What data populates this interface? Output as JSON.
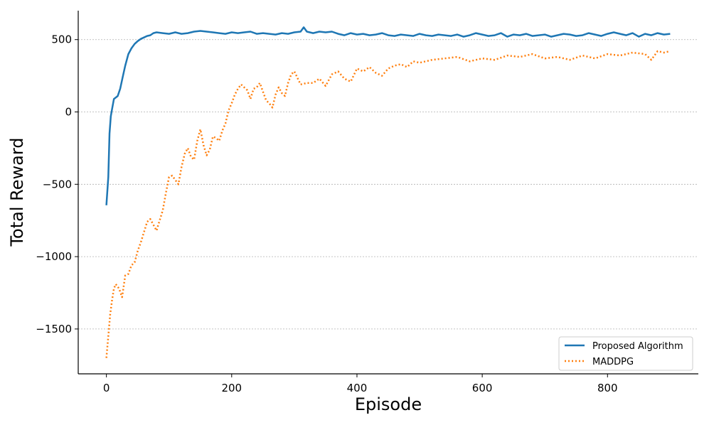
{
  "chart_data": {
    "type": "line",
    "title": "",
    "xlabel": "Episode",
    "ylabel": "Total Reward",
    "xlim": [
      -45,
      945
    ],
    "ylim": [
      -1810,
      700
    ],
    "xticks": [
      0,
      200,
      400,
      600,
      800
    ],
    "yticks": [
      500,
      0,
      -500,
      -1000,
      -1500
    ],
    "xtick_labels": [
      "0",
      "200",
      "400",
      "600",
      "800"
    ],
    "ytick_labels": [
      "500",
      "0",
      "−500",
      "−1000",
      "−1500"
    ],
    "grid": "horizontal dashed",
    "legend_position": "bottom-right",
    "series": [
      {
        "name": "Proposed Algorithm",
        "color": "#1f77b4",
        "style": "solid",
        "x": [
          0,
          3,
          5,
          7,
          9,
          12,
          15,
          18,
          22,
          26,
          30,
          35,
          40,
          45,
          50,
          55,
          60,
          65,
          70,
          75,
          80,
          90,
          100,
          110,
          120,
          130,
          140,
          150,
          160,
          170,
          180,
          190,
          200,
          210,
          220,
          230,
          240,
          250,
          260,
          270,
          280,
          290,
          300,
          310,
          315,
          320,
          330,
          340,
          350,
          360,
          370,
          380,
          390,
          400,
          410,
          420,
          430,
          440,
          450,
          460,
          470,
          480,
          490,
          500,
          510,
          520,
          530,
          540,
          550,
          560,
          570,
          580,
          590,
          600,
          610,
          620,
          630,
          640,
          650,
          660,
          670,
          680,
          690,
          700,
          710,
          720,
          730,
          740,
          750,
          760,
          770,
          780,
          790,
          800,
          810,
          820,
          830,
          840,
          850,
          860,
          870,
          880,
          890,
          900
        ],
        "values": [
          -645,
          -450,
          -150,
          -30,
          20,
          90,
          100,
          110,
          160,
          240,
          320,
          400,
          440,
          470,
          490,
          505,
          515,
          525,
          530,
          545,
          550,
          545,
          540,
          550,
          540,
          545,
          555,
          560,
          555,
          550,
          545,
          540,
          550,
          545,
          550,
          555,
          540,
          545,
          540,
          535,
          545,
          540,
          550,
          555,
          585,
          555,
          545,
          555,
          550,
          555,
          540,
          530,
          545,
          535,
          540,
          530,
          535,
          545,
          530,
          525,
          535,
          530,
          525,
          540,
          530,
          525,
          535,
          530,
          525,
          535,
          520,
          530,
          545,
          535,
          525,
          530,
          545,
          520,
          535,
          530,
          540,
          525,
          530,
          535,
          520,
          530,
          540,
          535,
          525,
          530,
          545,
          535,
          525,
          540,
          550,
          540,
          530,
          545,
          520,
          540,
          530,
          545,
          535,
          540
        ]
      },
      {
        "name": "MADDPG",
        "color": "#ff7f0e",
        "style": "dotted",
        "x": [
          0,
          3,
          6,
          9,
          12,
          15,
          20,
          25,
          30,
          35,
          40,
          45,
          50,
          55,
          60,
          65,
          70,
          75,
          80,
          85,
          90,
          95,
          100,
          105,
          110,
          115,
          120,
          125,
          130,
          135,
          140,
          145,
          150,
          155,
          160,
          165,
          170,
          175,
          180,
          185,
          190,
          195,
          200,
          205,
          210,
          215,
          220,
          225,
          230,
          235,
          240,
          245,
          250,
          255,
          260,
          265,
          270,
          275,
          280,
          285,
          290,
          295,
          300,
          310,
          320,
          330,
          340,
          350,
          360,
          370,
          380,
          390,
          400,
          410,
          420,
          430,
          440,
          450,
          460,
          470,
          480,
          490,
          500,
          520,
          540,
          560,
          580,
          600,
          620,
          640,
          660,
          680,
          700,
          720,
          740,
          760,
          780,
          800,
          820,
          840,
          860,
          870,
          880,
          890,
          900
        ],
        "values": [
          -1700,
          -1550,
          -1400,
          -1300,
          -1220,
          -1190,
          -1220,
          -1280,
          -1130,
          -1120,
          -1060,
          -1040,
          -960,
          -900,
          -830,
          -760,
          -740,
          -780,
          -820,
          -750,
          -680,
          -560,
          -450,
          -440,
          -470,
          -500,
          -380,
          -290,
          -250,
          -310,
          -330,
          -200,
          -120,
          -230,
          -300,
          -260,
          -170,
          -180,
          -200,
          -130,
          -80,
          10,
          60,
          120,
          160,
          190,
          170,
          150,
          90,
          160,
          170,
          200,
          140,
          80,
          60,
          30,
          120,
          170,
          130,
          110,
          200,
          260,
          280,
          190,
          200,
          200,
          230,
          180,
          260,
          280,
          230,
          210,
          300,
          280,
          310,
          270,
          250,
          300,
          320,
          330,
          310,
          350,
          340,
          360,
          370,
          380,
          350,
          370,
          360,
          390,
          380,
          400,
          370,
          380,
          360,
          390,
          370,
          400,
          390,
          410,
          400,
          360,
          420,
          410,
          420
        ]
      }
    ]
  }
}
